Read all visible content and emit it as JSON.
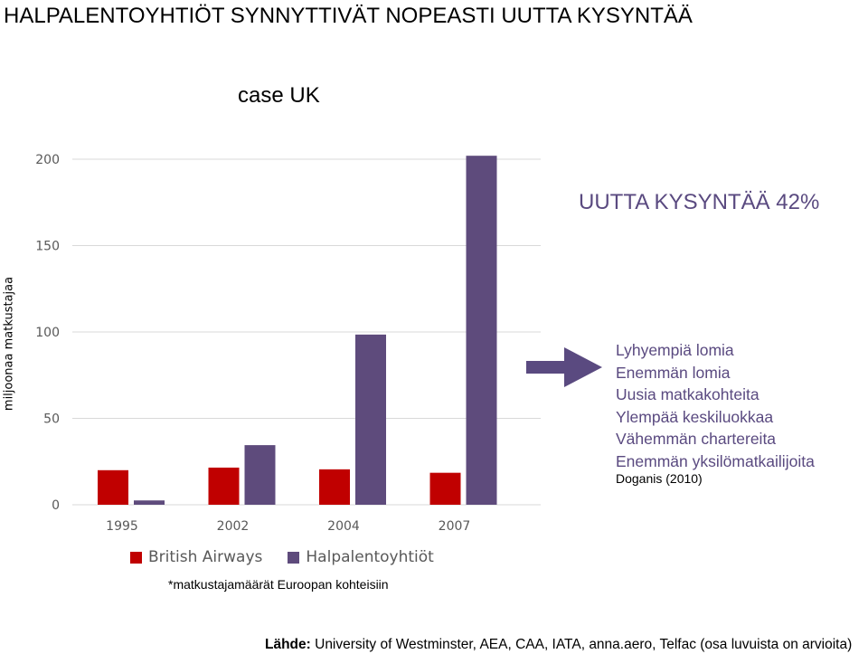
{
  "title": "HALPALENTOYHTIÖT SYNNYTTIVÄT NOPEASTI UUTTA KYSYNTÄÄ",
  "subtitle": "case UK",
  "growth_text": "UUTTA KYSYNTÄÄ 42%",
  "effects": [
    "Lyhyempiä lomia",
    "Enemmän lomia",
    "Uusia matkakohteita",
    "Ylempää keskiluokkaa",
    "Vähemmän chartereita",
    "Enemmän yksilömatkailijoita"
  ],
  "effects_source": "Doganis (2010)",
  "footnote": "*matkustajamäärät Euroopan kohteisiin",
  "source_label": "Lähde:",
  "source_text": " University of Westminster, AEA, CAA, IATA, anna.aero, Telfac (osa luvuista on arvioita)",
  "colors": {
    "british_airways": "#c00000",
    "low_cost": "#5e4b7c",
    "arrow": "#5a4a80"
  },
  "chart_data": {
    "type": "bar",
    "categories": [
      "1995",
      "2002",
      "2004",
      "2007"
    ],
    "series": [
      {
        "name": "British Airways",
        "values": [
          20,
          21.5,
          20.5,
          18.5
        ]
      },
      {
        "name": "Halpalentoyhtiöt",
        "values": [
          2.5,
          34.5,
          98.5,
          202
        ]
      }
    ],
    "ylabel": "miljoonaa matkustajaa",
    "yticks": [
      0,
      50,
      100,
      150,
      200
    ],
    "ylim": [
      0,
      200
    ],
    "grid": true,
    "legend": "bottom"
  }
}
